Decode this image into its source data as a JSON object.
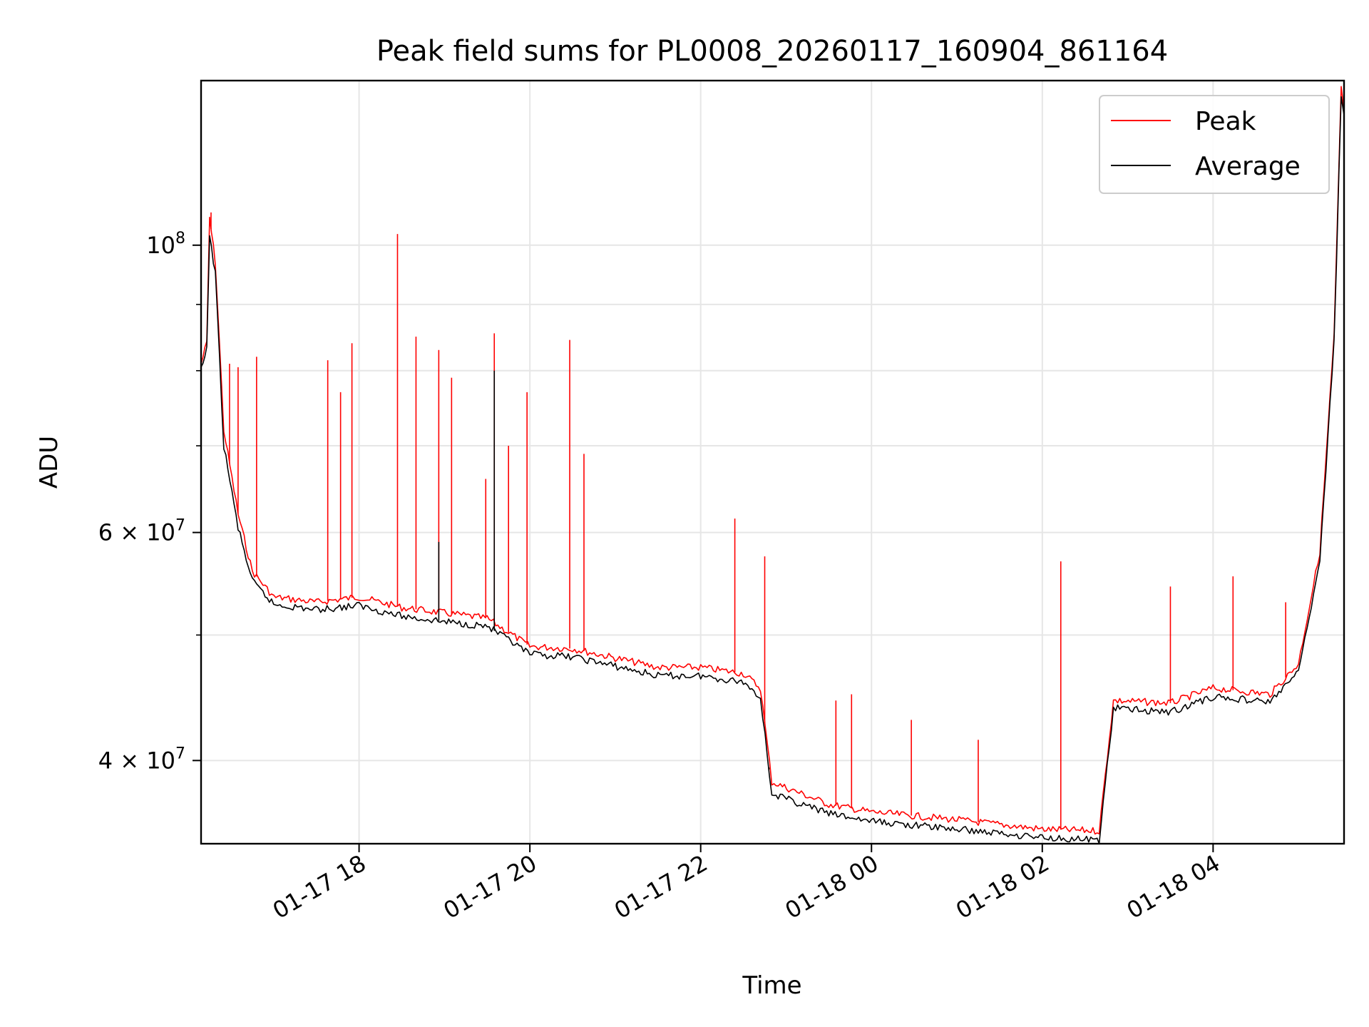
{
  "chart_data": {
    "type": "line",
    "title": "Peak field sums for PL0008_20260117_160904_861164",
    "xlabel": "Time",
    "ylabel": "ADU",
    "y_scale": "log",
    "ylim": [
      34500000,
      134000000
    ],
    "xlim": [
      "2026-01-17T16:09",
      "2026-01-18T05:32"
    ],
    "grid": true,
    "legend_position": "top-right",
    "x_ticks": [
      {
        "t": "2026-01-17T18:00",
        "label": "01-17 18"
      },
      {
        "t": "2026-01-17T20:00",
        "label": "01-17 20"
      },
      {
        "t": "2026-01-17T22:00",
        "label": "01-17 22"
      },
      {
        "t": "2026-01-18T00:00",
        "label": "01-18 00"
      },
      {
        "t": "2026-01-18T02:00",
        "label": "01-18 02"
      },
      {
        "t": "2026-01-18T04:00",
        "label": "01-18 04"
      }
    ],
    "y_ticks": [
      {
        "value": 40000000,
        "base": "4",
        "exp": "7"
      },
      {
        "value": 60000000,
        "base": "6",
        "exp": "7"
      },
      {
        "value": 100000000,
        "base": "10",
        "exp": "8"
      }
    ],
    "y_minor_ticks": [
      50000000,
      70000000,
      80000000,
      90000000
    ],
    "series": [
      {
        "name": "Peak",
        "color": "#ff0000",
        "points": [
          [
            "2026-01-17T16:09",
            81000000
          ],
          [
            "2026-01-17T16:13",
            84000000
          ],
          [
            "2026-01-17T16:15",
            105000000
          ],
          [
            "2026-01-17T16:19",
            97000000
          ],
          [
            "2026-01-17T16:25",
            72000000
          ],
          [
            "2026-01-17T16:35",
            62000000
          ],
          [
            "2026-01-17T16:45",
            56000000
          ],
          [
            "2026-01-17T17:00",
            53500000
          ],
          [
            "2026-01-17T17:30",
            53000000
          ],
          [
            "2026-01-17T18:00",
            53500000
          ],
          [
            "2026-01-17T18:30",
            52500000
          ],
          [
            "2026-01-17T19:00",
            52000000
          ],
          [
            "2026-01-17T19:30",
            51500000
          ],
          [
            "2026-01-17T20:00",
            49000000
          ],
          [
            "2026-01-17T20:30",
            48800000
          ],
          [
            "2026-01-17T21:00",
            48000000
          ],
          [
            "2026-01-17T21:30",
            47200000
          ],
          [
            "2026-01-17T22:00",
            47200000
          ],
          [
            "2026-01-17T22:30",
            46700000
          ],
          [
            "2026-01-17T22:42",
            45500000
          ],
          [
            "2026-01-17T22:50",
            38500000
          ],
          [
            "2026-01-17T23:30",
            37000000
          ],
          [
            "2026-01-18T00:00",
            36500000
          ],
          [
            "2026-01-18T01:00",
            36000000
          ],
          [
            "2026-01-18T02:00",
            35400000
          ],
          [
            "2026-01-18T02:40",
            35300000
          ],
          [
            "2026-01-18T02:50",
            44500000
          ],
          [
            "2026-01-18T03:30",
            44300000
          ],
          [
            "2026-01-18T04:00",
            45500000
          ],
          [
            "2026-01-18T04:40",
            45000000
          ],
          [
            "2026-01-18T05:00",
            47500000
          ],
          [
            "2026-01-18T05:15",
            58000000
          ],
          [
            "2026-01-18T05:25",
            85000000
          ],
          [
            "2026-01-18T05:30",
            132000000
          ],
          [
            "2026-01-18T05:32",
            127000000
          ]
        ],
        "spikes": [
          [
            "2026-01-17T16:16",
            106000000
          ],
          [
            "2026-01-17T16:29",
            81000000
          ],
          [
            "2026-01-17T16:35",
            80500000
          ],
          [
            "2026-01-17T16:48",
            82000000
          ],
          [
            "2026-01-17T17:38",
            81500000
          ],
          [
            "2026-01-17T17:47",
            77000000
          ],
          [
            "2026-01-17T17:55",
            84000000
          ],
          [
            "2026-01-17T18:27",
            102000000
          ],
          [
            "2026-01-17T18:40",
            85000000
          ],
          [
            "2026-01-17T18:56",
            83000000
          ],
          [
            "2026-01-17T19:05",
            79000000
          ],
          [
            "2026-01-17T19:29",
            66000000
          ],
          [
            "2026-01-17T19:35",
            85500000
          ],
          [
            "2026-01-17T19:45",
            70000000
          ],
          [
            "2026-01-17T19:58",
            77000000
          ],
          [
            "2026-01-17T20:28",
            84500000
          ],
          [
            "2026-01-17T20:38",
            69000000
          ],
          [
            "2026-01-17T22:24",
            61500000
          ],
          [
            "2026-01-17T22:45",
            57500000
          ],
          [
            "2026-01-17T23:35",
            44500000
          ],
          [
            "2026-01-17T23:46",
            45000000
          ],
          [
            "2026-01-18T00:28",
            43000000
          ],
          [
            "2026-01-18T01:15",
            41500000
          ],
          [
            "2026-01-18T02:13",
            57000000
          ],
          [
            "2026-01-18T03:30",
            54500000
          ],
          [
            "2026-01-18T04:14",
            55500000
          ],
          [
            "2026-01-18T04:51",
            53000000
          ]
        ]
      },
      {
        "name": "Average",
        "color": "#000000",
        "points": [
          [
            "2026-01-17T16:09",
            80000000
          ],
          [
            "2026-01-17T16:13",
            83000000
          ],
          [
            "2026-01-17T16:15",
            102000000
          ],
          [
            "2026-01-17T16:19",
            95000000
          ],
          [
            "2026-01-17T16:25",
            70000000
          ],
          [
            "2026-01-17T16:35",
            60500000
          ],
          [
            "2026-01-17T16:45",
            55000000
          ],
          [
            "2026-01-17T17:00",
            52800000
          ],
          [
            "2026-01-17T17:30",
            52300000
          ],
          [
            "2026-01-17T18:00",
            52700000
          ],
          [
            "2026-01-17T18:30",
            51700000
          ],
          [
            "2026-01-17T19:00",
            51200000
          ],
          [
            "2026-01-17T19:30",
            50800000
          ],
          [
            "2026-01-17T20:00",
            48300000
          ],
          [
            "2026-01-17T20:30",
            48100000
          ],
          [
            "2026-01-17T21:00",
            47300000
          ],
          [
            "2026-01-17T21:30",
            46500000
          ],
          [
            "2026-01-17T22:00",
            46500000
          ],
          [
            "2026-01-17T22:30",
            46000000
          ],
          [
            "2026-01-17T22:42",
            44800000
          ],
          [
            "2026-01-17T22:50",
            37700000
          ],
          [
            "2026-01-17T23:30",
            36400000
          ],
          [
            "2026-01-18T00:00",
            35900000
          ],
          [
            "2026-01-18T01:00",
            35400000
          ],
          [
            "2026-01-18T02:00",
            34900000
          ],
          [
            "2026-01-18T02:40",
            34700000
          ],
          [
            "2026-01-18T02:50",
            43900000
          ],
          [
            "2026-01-18T03:30",
            43600000
          ],
          [
            "2026-01-18T04:00",
            44800000
          ],
          [
            "2026-01-18T04:40",
            44400000
          ],
          [
            "2026-01-18T05:00",
            46800000
          ],
          [
            "2026-01-18T05:15",
            57000000
          ],
          [
            "2026-01-18T05:25",
            84000000
          ],
          [
            "2026-01-18T05:30",
            131000000
          ],
          [
            "2026-01-18T05:32",
            126000000
          ]
        ],
        "spikes": [
          [
            "2026-01-17T19:35",
            80000000
          ],
          [
            "2026-01-17T18:56",
            59000000
          ],
          [
            "2026-01-17T22:48",
            39500000
          ]
        ]
      }
    ]
  }
}
